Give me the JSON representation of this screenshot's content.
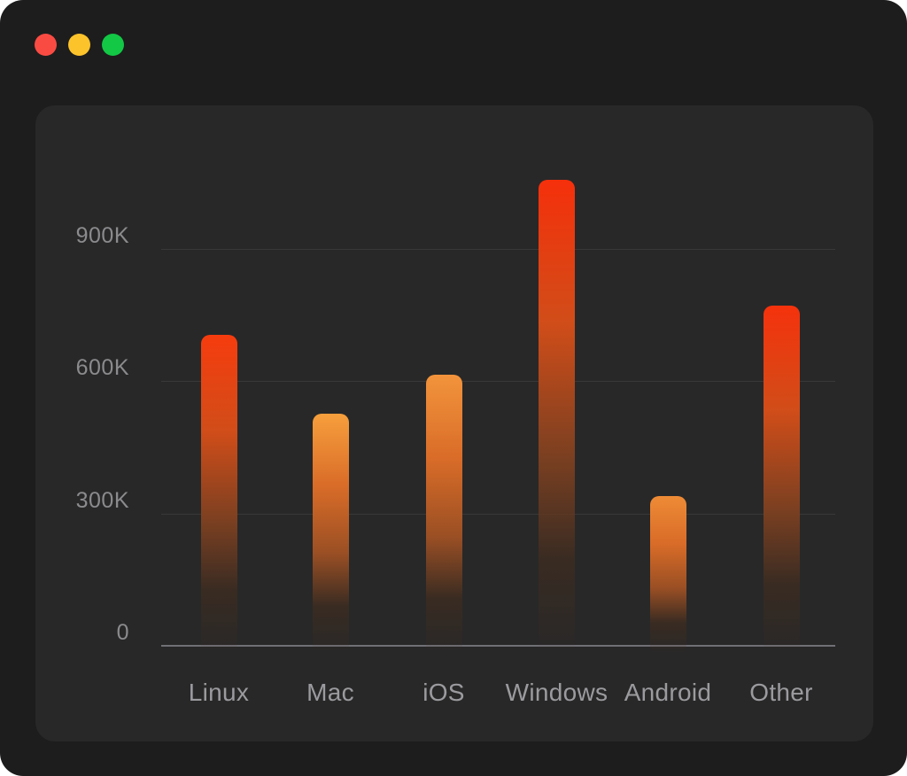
{
  "window": {
    "type": "macos-window",
    "traffic_lights": [
      {
        "name": "close",
        "color": "#fa4b43"
      },
      {
        "name": "minimize",
        "color": "#fcc32b"
      },
      {
        "name": "maximize",
        "color": "#12c845"
      }
    ]
  },
  "colors": {
    "page_background": "#ffffff",
    "window_background": "#1d1d1d",
    "panel_background": "#282828",
    "axis_line": "#707076",
    "gridline": "rgba(255,255,255,0.08)",
    "ytick_text": "#8b8b8e",
    "xtick_text": "#9b9b9f"
  },
  "chart_data": {
    "type": "bar",
    "title": "",
    "xlabel": "",
    "ylabel": "",
    "categories": [
      "Linux",
      "Mac",
      "iOS",
      "Windows",
      "Android",
      "Other"
    ],
    "values": [
      705000,
      525000,
      615000,
      1055000,
      340000,
      770000
    ],
    "ylim": [
      0,
      1100000
    ],
    "yticks": [
      {
        "value": 0,
        "label": "0"
      },
      {
        "value": 300000,
        "label": "300K"
      },
      {
        "value": 600000,
        "label": "600K"
      },
      {
        "value": 900000,
        "label": "900K"
      }
    ],
    "grid": "horizontal-at-yticks",
    "legend": "none",
    "bar_gradients": [
      {
        "top": "#f63c0e",
        "mid": "#d14d19",
        "low": "#7c4021"
      },
      {
        "top": "#f79f3d",
        "mid": "#d96c28",
        "low": "#9a4f24"
      },
      {
        "top": "#f2943c",
        "mid": "#d96c28",
        "low": "#9a4f24"
      },
      {
        "top": "#f5300b",
        "mid": "#d14d19",
        "low": "#7c4021"
      },
      {
        "top": "#ee8b36",
        "mid": "#d96c28",
        "low": "#9a4f24"
      },
      {
        "top": "#f5320c",
        "mid": "#d14d19",
        "low": "#7c4021"
      }
    ]
  }
}
